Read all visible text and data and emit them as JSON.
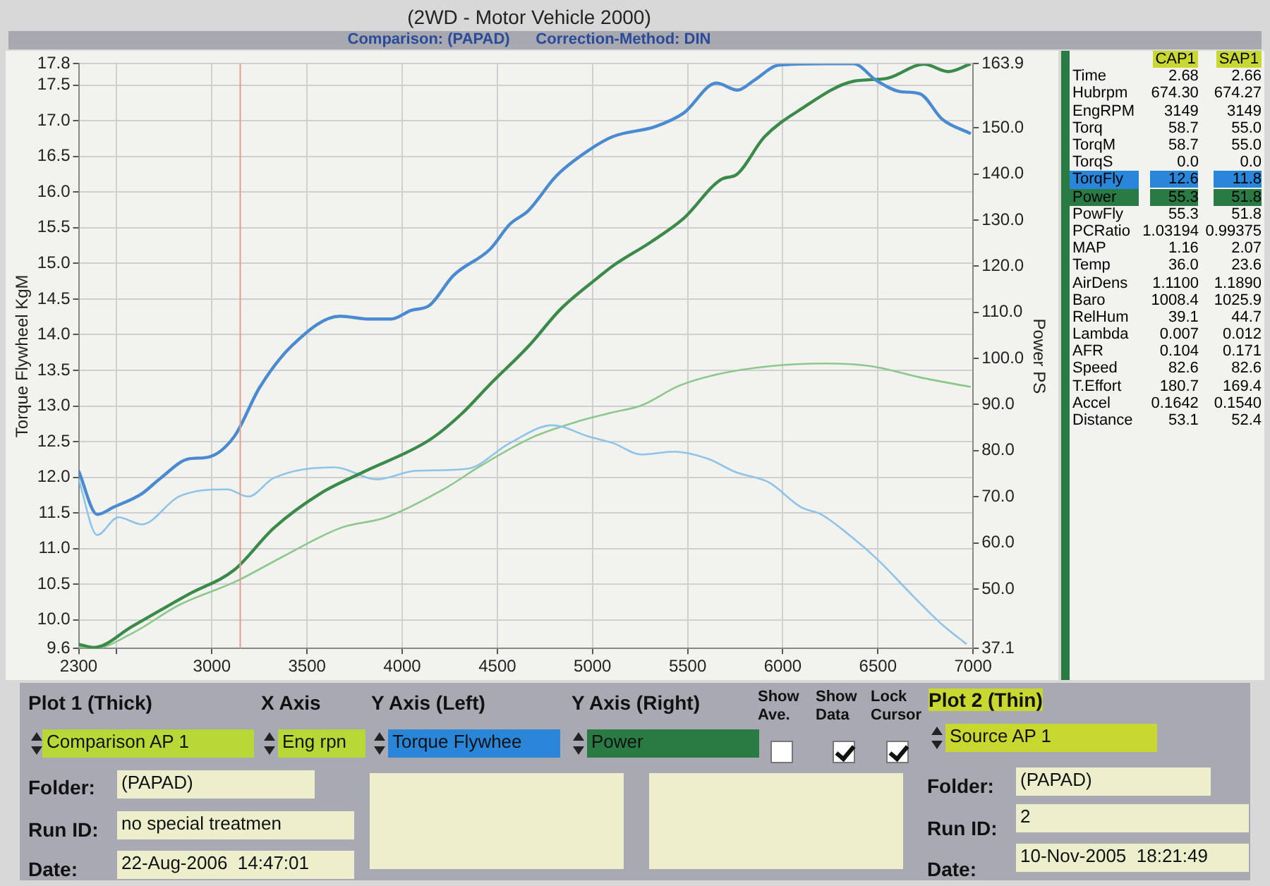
{
  "chart_data": [
    {
      "type": "line",
      "title": "(2WD - Motor Vehicle 2000)",
      "subtitle": "Comparison: (PAPAD)      Correction-Method: DIN",
      "ylabel": "Torque Flywheel KgM",
      "y2label": "Power PS",
      "xlim": [
        2300,
        7000
      ],
      "xticks": [
        2300,
        {
          "value": 2500,
          "label": null
        },
        3000,
        3500,
        4000,
        4500,
        5000,
        5500,
        6000,
        6500,
        7000
      ],
      "ylim": [
        9.6,
        17.8
      ],
      "yticks": [
        9.6,
        {
          "value": 10,
          "label": "10.0"
        },
        10.5,
        {
          "value": 11,
          "label": "11.0"
        },
        11.5,
        {
          "value": 12,
          "label": "12.0"
        },
        12.5,
        {
          "value": 13,
          "label": "13.0"
        },
        13.5,
        {
          "value": 14,
          "label": "14.0"
        },
        14.5,
        {
          "value": 15,
          "label": "15.0"
        },
        15.5,
        {
          "value": 16,
          "label": "16.0"
        },
        16.5,
        {
          "value": 17,
          "label": "17.0"
        },
        17.5,
        17.8
      ],
      "y2lim": [
        37.1,
        163.9
      ],
      "y2ticks": [
        37.1,
        {
          "value": 50,
          "label": "50.0"
        },
        {
          "value": 60,
          "label": "60.0"
        },
        {
          "value": 70,
          "label": "70.0"
        },
        {
          "value": 80,
          "label": "80.0"
        },
        {
          "value": 90,
          "label": "90.0"
        },
        {
          "value": 100,
          "label": "100.0"
        },
        {
          "value": 110,
          "label": "110.0"
        },
        {
          "value": 120,
          "label": "120.0"
        },
        {
          "value": 130,
          "label": "130.0"
        },
        {
          "value": 140,
          "label": "140.0"
        },
        {
          "value": 150,
          "label": "150.0"
        },
        163.9
      ],
      "grid": true,
      "marker": "none",
      "line_style": "solid",
      "ref_lines": [
        {
          "axis": "x",
          "value": 3149,
          "color": "#e0a090"
        }
      ],
      "series": [
        {
          "color": "#4a8ad0",
          "x": [
            2300,
            2397,
            2483,
            2632,
            2731,
            2880,
            2976,
            3117,
            3251,
            3422,
            3674,
            3823,
            3942,
            4046,
            4143,
            4269,
            4462,
            4566,
            4663,
            4811,
            4982,
            5108,
            5331,
            5480,
            5651,
            5762,
            5851,
            5978,
            6223,
            6371,
            6495,
            6617,
            6720,
            6839,
            6988
          ],
          "values": [
            12.09,
            11.48,
            11.58,
            11.77,
            11.99,
            12.26,
            12.28,
            12.57,
            13.26,
            13.85,
            14.26,
            14.22,
            14.22,
            14.34,
            14.41,
            14.83,
            15.2,
            15.55,
            15.74,
            16.23,
            16.59,
            16.78,
            16.92,
            17.11,
            17.53,
            17.43,
            17.57,
            17.78,
            17.8,
            17.8,
            17.56,
            17.41,
            17.38,
            17.02,
            16.82
          ]
        },
        {
          "color": "#3a8a4a",
          "axis": "y2",
          "x": [
            2300,
            2380,
            2582,
            2880,
            3117,
            3325,
            3570,
            3793,
            4143,
            4313,
            4462,
            4663,
            4833,
            5034,
            5108,
            5309,
            5480,
            5680,
            5755,
            5903,
            6097,
            6371,
            6542,
            6743,
            6869,
            6988
          ],
          "values": [
            38.0,
            37.3,
            41.9,
            48.9,
            54.1,
            63.2,
            70.7,
            75.3,
            82.3,
            88.0,
            94.4,
            102.6,
            110.7,
            117.7,
            120.1,
            125.3,
            130.4,
            138.9,
            139.8,
            148.0,
            154.1,
            160.1,
            160.7,
            163.8,
            162.2,
            163.9
          ]
        },
        {
          "color": "#8ec4e8",
          "x": [
            2300,
            2397,
            2508,
            2632,
            2827,
            3080,
            3191,
            3325,
            3645,
            3868,
            4068,
            4343,
            4566,
            4789,
            4982,
            5108,
            5257,
            5428,
            5606,
            5755,
            5926,
            6097,
            6201,
            6350,
            6497,
            6690,
            6839,
            6966
          ],
          "values": [
            11.97,
            11.19,
            11.44,
            11.34,
            11.73,
            11.83,
            11.73,
            11.99,
            12.14,
            11.97,
            12.09,
            12.12,
            12.48,
            12.73,
            12.57,
            12.48,
            12.32,
            12.36,
            12.26,
            12.07,
            11.93,
            11.58,
            11.48,
            11.19,
            10.85,
            10.32,
            9.93,
            9.66
          ]
        },
        {
          "color": "#8cc88c",
          "axis": "y2",
          "x": [
            2300,
            2382,
            2582,
            2827,
            3125,
            3377,
            3674,
            3920,
            4217,
            4417,
            4685,
            4937,
            5108,
            5257,
            5457,
            5651,
            5926,
            6223,
            6468,
            6720,
            6988
          ],
          "values": [
            37.5,
            37.1,
            40.4,
            46.5,
            51.6,
            57.1,
            63.2,
            65.6,
            71.6,
            76.8,
            82.9,
            86.5,
            88.3,
            89.8,
            94.1,
            96.5,
            98.3,
            98.9,
            98.3,
            95.9,
            93.8
          ]
        }
      ]
    },
    {
      "type": "other",
      "categories": [
        "Time",
        "Hubrpm",
        "EngRPM",
        "Torq",
        "TorqM",
        "TorqS",
        "TorqFly",
        "Power",
        "PowFly",
        "PCRatio",
        "MAP",
        "Temp",
        "AirDens",
        "Baro",
        "RelHum",
        "Lambda",
        "AFR",
        "Speed",
        "T.Effort",
        "Accel",
        "Distance"
      ],
      "series": [
        {
          "name": "CAP1",
          "values": [
            2.68,
            674.3,
            3149,
            58.7,
            58.7,
            0,
            12.6,
            55.3,
            55.3,
            1.03194,
            1.16,
            36,
            1.11,
            1008.4,
            39.1,
            0.007,
            0.104,
            82.6,
            180.7,
            0.1642,
            53.1
          ],
          "value_labels": [
            "2.68",
            "674.30",
            "3149",
            "58.7",
            "58.7",
            "0.0",
            "12.6",
            "55.3",
            "55.3",
            "1.03194",
            "1.16",
            "36.0",
            "1.1100",
            "1008.4",
            "39.1",
            "0.007",
            "0.104",
            "82.6",
            "180.7",
            "0.1642",
            "53.1"
          ],
          "colors": [
            "#f2f2ee",
            "#f2f2ee",
            "#f2f2ee",
            "#f2f2ee",
            "#f2f2ee",
            "#f2f2ee",
            "#2a86d8",
            "#2a7a44",
            "#f2f2ee",
            "#f2f2ee",
            "#f2f2ee",
            "#f2f2ee",
            "#f2f2ee",
            "#f2f2ee",
            "#f2f2ee",
            "#f2f2ee",
            "#f2f2ee",
            "#f2f2ee",
            "#f2f2ee",
            "#f2f2ee",
            "#f2f2ee"
          ]
        },
        {
          "name": "SAP1",
          "values": [
            2.66,
            674.27,
            3149,
            55,
            55,
            0,
            11.8,
            51.8,
            51.8,
            0.99375,
            2.07,
            23.6,
            1.189,
            1025.9,
            44.7,
            0.012,
            0.171,
            82.6,
            169.4,
            0.154,
            52.4
          ],
          "value_labels": [
            "2.66",
            "674.27",
            "3149",
            "55.0",
            "55.0",
            "0.0",
            "11.8",
            "51.8",
            "51.8",
            "0.99375",
            "2.07",
            "23.6",
            "1.1890",
            "1025.9",
            "44.7",
            "0.012",
            "0.171",
            "82.6",
            "169.4",
            "0.1540",
            "52.4"
          ],
          "colors": [
            "#f2f2ee",
            "#f2f2ee",
            "#f2f2ee",
            "#f2f2ee",
            "#f2f2ee",
            "#f2f2ee",
            "#2a86d8",
            "#2a7a44",
            "#f2f2ee",
            "#f2f2ee",
            "#f2f2ee",
            "#f2f2ee",
            "#f2f2ee",
            "#f2f2ee",
            "#f2f2ee",
            "#f2f2ee",
            "#f2f2ee",
            "#f2f2ee",
            "#f2f2ee",
            "#f2f2ee",
            "#f2f2ee"
          ]
        }
      ],
      "data_labels": true
    },
    {
      "type": "other",
      "annotations": [
        "Plot 1 (Thick)",
        "X Axis",
        "Y Axis (Left)",
        "Y Axis (Right)",
        "Show Ave.",
        "Show Data",
        "Lock Cursor",
        "Plot 2 (Thin)",
        "Comparison AP 1",
        "Eng rpn",
        "Torque Flywhee",
        "Power",
        "Source AP 1",
        "Folder:",
        "(PAPAD)",
        "Run ID:",
        "no special treatmen",
        "Date:",
        "22-Aug-2006  14:47:01",
        "Folder:",
        "(PAPAD)",
        "Run ID:",
        "2",
        "Date:",
        "10-Nov-2005  18:21:49"
      ]
    }
  ]
}
